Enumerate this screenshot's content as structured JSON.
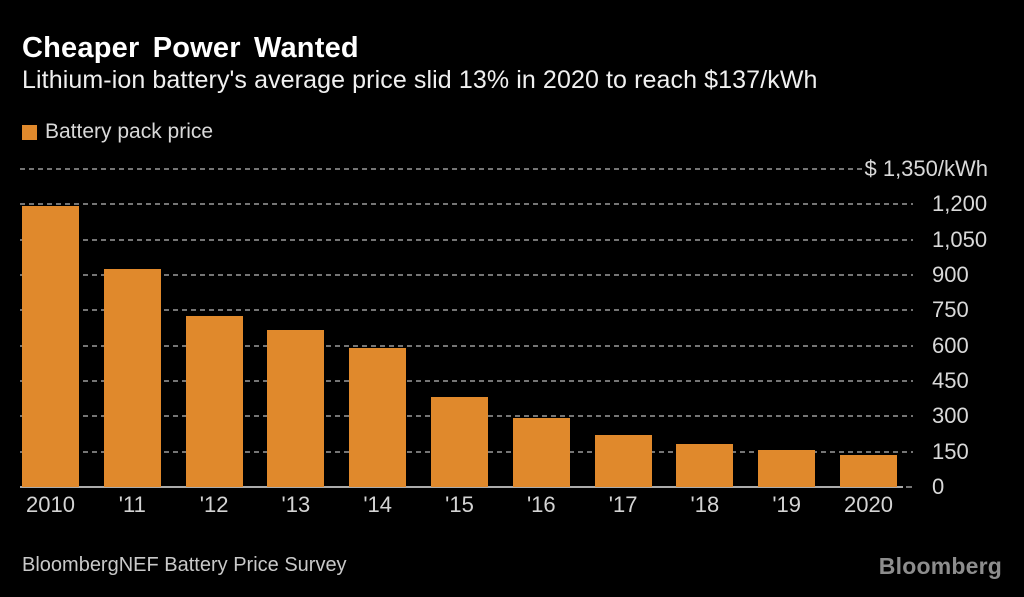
{
  "header": {
    "title": "Cheaper Power Wanted",
    "subtitle": "Lithium-ion battery's average price slid 13% in 2020 to reach $137/kWh"
  },
  "legend": {
    "label": "Battery pack price"
  },
  "footer": {
    "source": "BloombergNEF Battery Price Survey",
    "logo": "Bloomberg"
  },
  "colors": {
    "background": "#000000",
    "bar": "#E0892C",
    "grid": "#757575",
    "baseline": "#ABABAB",
    "axis_text": "#D9D9D9",
    "title": "#FFFFFF",
    "subtitle": "#F0F0F0",
    "source_text": "#C9C9C9",
    "logo_text": "#8D8D8D"
  },
  "chart_data": {
    "type": "bar",
    "title": "Cheaper Power Wanted",
    "subtitle": "Lithium-ion battery's average price slid 13% in 2020 to reach $137/kWh",
    "legend_entries": [
      "Battery pack price"
    ],
    "legend_position": "top-left",
    "categories": [
      "2010",
      "'11",
      "'12",
      "'13",
      "'14",
      "'15",
      "'16",
      "'17",
      "'18",
      "'19",
      "2020"
    ],
    "values": [
      1191,
      924,
      726,
      668,
      592,
      384,
      295,
      221,
      181,
      157,
      137
    ],
    "unit": "$/kWh",
    "xlabel": "",
    "ylabel": "$/kWh",
    "ylim": [
      0,
      1350
    ],
    "y_axis_side": "right",
    "grid": "horizontal-dotted",
    "y_ticks": [
      {
        "value": 1350,
        "label": "$ 1,350/kWh"
      },
      {
        "value": 1200,
        "label": "1,200"
      },
      {
        "value": 1050,
        "label": "1,050"
      },
      {
        "value": 900,
        "label": "900"
      },
      {
        "value": 750,
        "label": "750"
      },
      {
        "value": 600,
        "label": "600"
      },
      {
        "value": 450,
        "label": "450"
      },
      {
        "value": 300,
        "label": "300"
      },
      {
        "value": 150,
        "label": "150"
      },
      {
        "value": 0,
        "label": "0"
      }
    ]
  }
}
